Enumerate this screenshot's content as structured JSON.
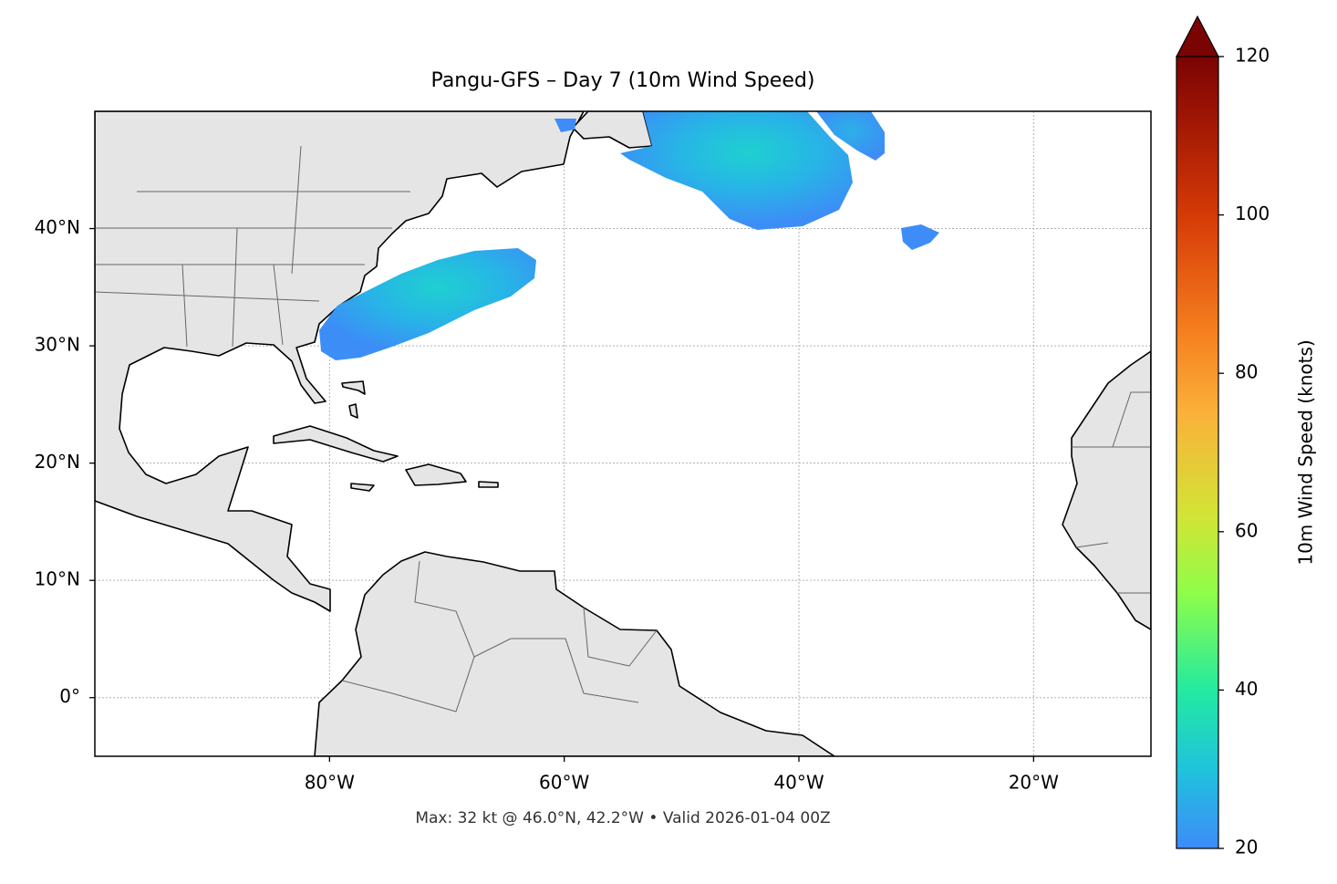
{
  "chart_data": {
    "type": "map",
    "title": "Pangu-GFS – Day 7 (10m Wind Speed)",
    "annotation": "Max: 32 kt @ 46.0°N, 42.2°W • Valid 2026-01-04 00Z",
    "xlim": [
      -100,
      -10
    ],
    "ylim": [
      -5,
      50
    ],
    "xticks": [
      {
        "value": -80,
        "label": "80°W"
      },
      {
        "value": -60,
        "label": "60°W"
      },
      {
        "value": -40,
        "label": "40°W"
      },
      {
        "value": -20,
        "label": "20°W"
      }
    ],
    "yticks": [
      {
        "value": 0,
        "label": "0°"
      },
      {
        "value": 10,
        "label": "10°N"
      },
      {
        "value": 20,
        "label": "20°N"
      },
      {
        "value": 30,
        "label": "30°N"
      },
      {
        "value": 40,
        "label": "40°N"
      }
    ],
    "grid": true,
    "colorbar": {
      "label": "10m Wind Speed (knots)",
      "lim": [
        20,
        120
      ],
      "ticks": [
        20,
        40,
        60,
        80,
        100,
        120
      ],
      "extend": "max"
    }
  }
}
